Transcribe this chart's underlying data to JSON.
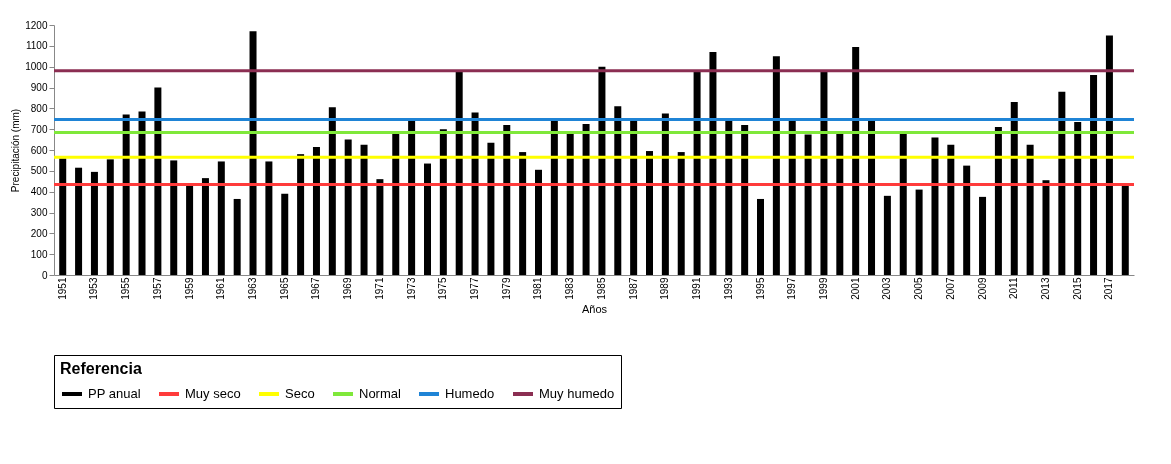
{
  "chart_data": {
    "type": "bar",
    "xlabel": "Años",
    "ylabel": "Precipitación (mm)",
    "legend_title": "Referencia",
    "legend": "bottom",
    "categories": [
      "1951",
      null,
      "1953",
      null,
      "1955",
      null,
      "1957",
      null,
      "1959",
      null,
      "1961",
      null,
      "1963",
      null,
      "1965",
      null,
      "1967",
      null,
      "1969",
      null,
      "1971",
      null,
      "1973",
      null,
      "1975",
      null,
      "1977",
      null,
      "1979",
      null,
      "1981",
      null,
      "1983",
      null,
      "1985",
      null,
      "1987",
      null,
      "1989",
      null,
      "1991",
      null,
      "1993",
      null,
      "1995",
      null,
      "1997",
      null,
      "1999",
      null,
      "2001",
      null,
      "2003",
      null,
      "2005",
      null,
      "2007",
      null,
      "2009",
      null,
      "2011",
      null,
      "2013",
      null,
      "2015",
      null,
      "2017",
      null
    ],
    "series": [
      {
        "name": "PP anual",
        "color": "#000000",
        "values": [
          560,
          515,
          495,
          555,
          770,
          785,
          900,
          550,
          430,
          465,
          545,
          365,
          1170,
          545,
          390,
          580,
          615,
          805,
          650,
          625,
          460,
          680,
          745,
          535,
          700,
          980,
          780,
          635,
          720,
          590,
          505,
          745,
          680,
          725,
          1000,
          810,
          745,
          595,
          775,
          590,
          980,
          1070,
          745,
          720,
          365,
          1050,
          745,
          675,
          980,
          680,
          1095,
          745,
          380,
          680,
          410,
          660,
          625,
          525,
          375,
          710,
          830,
          625,
          455,
          880,
          735,
          960,
          1150,
          440
        ]
      }
    ],
    "ref_lines": [
      {
        "axis": "y",
        "value": 435,
        "label": "Muy seco",
        "color": "#ff3b3b"
      },
      {
        "axis": "y",
        "value": 565,
        "label": "Seco",
        "color": "#ffff00"
      },
      {
        "axis": "y",
        "value": 684,
        "label": "Normal",
        "color": "#7fe83a"
      },
      {
        "axis": "y",
        "value": 746,
        "label": "Humedo",
        "color": "#1f84d6"
      },
      {
        "axis": "y",
        "value": 981,
        "label": "Muy humedo",
        "color": "#8b2e52"
      }
    ],
    "ylim": [
      0,
      1200
    ],
    "yticks": [
      0,
      100,
      200,
      300,
      400,
      500,
      600,
      700,
      800,
      900,
      1000,
      1100,
      1200
    ],
    "grid": false
  }
}
